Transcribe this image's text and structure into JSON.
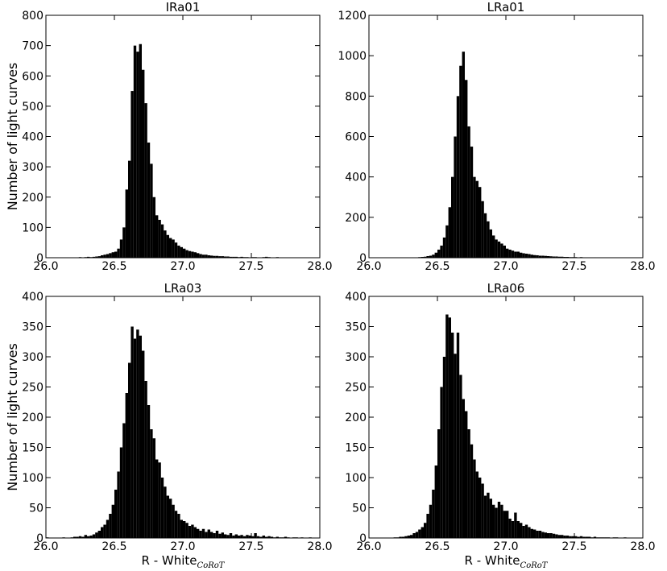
{
  "chart_data": [
    {
      "type": "histogram",
      "title": "IRa01",
      "ylabel": "Number of light curves",
      "color": "#000000",
      "bins": [
        26.0,
        26.02,
        26.04,
        26.06,
        26.08,
        26.1,
        26.12,
        26.14,
        26.16,
        26.18,
        26.2,
        26.22,
        26.24,
        26.26,
        26.28,
        26.3,
        26.32,
        26.34,
        26.36,
        26.38,
        26.4,
        26.42,
        26.44,
        26.46,
        26.48,
        26.5,
        26.52,
        26.54,
        26.56,
        26.58,
        26.6,
        26.62,
        26.64,
        26.66,
        26.68,
        26.7,
        26.72,
        26.74,
        26.76,
        26.78,
        26.8,
        26.82,
        26.84,
        26.86,
        26.88,
        26.9,
        26.92,
        26.94,
        26.96,
        26.98,
        27.0,
        27.02,
        27.04,
        27.06,
        27.08,
        27.1,
        27.12,
        27.14,
        27.16,
        27.18,
        27.2,
        27.22,
        27.24,
        27.26,
        27.28,
        27.3,
        27.32,
        27.34,
        27.36,
        27.38,
        27.4,
        27.42,
        27.44,
        27.46,
        27.48,
        27.5,
        27.52,
        27.54,
        27.56,
        27.58,
        27.6,
        27.62,
        27.64,
        27.66,
        27.68,
        27.7,
        27.72,
        27.74,
        27.76,
        27.78,
        27.8,
        27.82,
        27.84,
        27.86,
        27.88,
        27.9,
        27.92,
        27.94,
        27.96,
        27.98,
        28.0
      ],
      "values": [
        0,
        0,
        0,
        0,
        1,
        0,
        1,
        1,
        0,
        1,
        1,
        1,
        2,
        1,
        2,
        3,
        2,
        3,
        4,
        5,
        8,
        10,
        12,
        15,
        18,
        20,
        30,
        60,
        100,
        225,
        320,
        550,
        700,
        680,
        705,
        620,
        510,
        380,
        310,
        200,
        140,
        125,
        110,
        90,
        75,
        65,
        60,
        50,
        40,
        35,
        30,
        25,
        22,
        20,
        18,
        15,
        12,
        10,
        10,
        8,
        7,
        6,
        6,
        5,
        5,
        4,
        4,
        3,
        3,
        3,
        2,
        3,
        2,
        2,
        1,
        2,
        2,
        1,
        1,
        2,
        3,
        2,
        1,
        1,
        2,
        1,
        1,
        1,
        0,
        1,
        1,
        0,
        1,
        1,
        0,
        1,
        0,
        1,
        0,
        0
      ],
      "xlim": [
        26.0,
        28.0
      ],
      "ylim": [
        0,
        800
      ],
      "xticks": [
        {
          "value": 26.0,
          "label": "26.0"
        },
        {
          "value": 26.5,
          "label": "26.5"
        },
        {
          "value": 27.0,
          "label": "27.0"
        },
        {
          "value": 27.5,
          "label": "27.5"
        },
        {
          "value": 28.0,
          "label": "28.0"
        }
      ],
      "yticks": [
        0,
        100,
        200,
        300,
        400,
        500,
        600,
        700,
        800
      ]
    },
    {
      "type": "histogram",
      "title": "LRa01",
      "color": "#000000",
      "bins": [
        26.0,
        26.02,
        26.04,
        26.06,
        26.08,
        26.1,
        26.12,
        26.14,
        26.16,
        26.18,
        26.2,
        26.22,
        26.24,
        26.26,
        26.28,
        26.3,
        26.32,
        26.34,
        26.36,
        26.38,
        26.4,
        26.42,
        26.44,
        26.46,
        26.48,
        26.5,
        26.52,
        26.54,
        26.56,
        26.58,
        26.6,
        26.62,
        26.64,
        26.66,
        26.68,
        26.7,
        26.72,
        26.74,
        26.76,
        26.78,
        26.8,
        26.82,
        26.84,
        26.86,
        26.88,
        26.9,
        26.92,
        26.94,
        26.96,
        26.98,
        27.0,
        27.02,
        27.04,
        27.06,
        27.08,
        27.1,
        27.12,
        27.14,
        27.16,
        27.18,
        27.2,
        27.22,
        27.24,
        27.26,
        27.28,
        27.3,
        27.32,
        27.34,
        27.36,
        27.38,
        27.4,
        27.42,
        27.44,
        27.46,
        27.48,
        27.5,
        27.52,
        27.54,
        27.56,
        27.58,
        27.6,
        27.62,
        27.64,
        27.66,
        27.68,
        27.7,
        27.72,
        27.74,
        27.76,
        27.78,
        27.8,
        27.82,
        27.84,
        27.86,
        27.88,
        27.9,
        27.92,
        27.94,
        27.96,
        27.98,
        28.0
      ],
      "values": [
        0,
        0,
        0,
        0,
        0,
        0,
        0,
        0,
        0,
        0,
        0,
        1,
        0,
        1,
        1,
        1,
        2,
        2,
        3,
        4,
        5,
        8,
        10,
        15,
        25,
        40,
        60,
        100,
        160,
        250,
        400,
        600,
        800,
        950,
        1020,
        880,
        650,
        550,
        400,
        380,
        350,
        280,
        220,
        180,
        140,
        110,
        90,
        80,
        70,
        60,
        45,
        40,
        35,
        30,
        30,
        25,
        22,
        20,
        18,
        15,
        13,
        12,
        10,
        10,
        9,
        8,
        7,
        6,
        6,
        5,
        5,
        4,
        4,
        3,
        3,
        3,
        2,
        3,
        2,
        2,
        2,
        1,
        2,
        1,
        1,
        1,
        1,
        0,
        1,
        1,
        0,
        1,
        0,
        1,
        0,
        0,
        1,
        0,
        0,
        0
      ],
      "xlim": [
        26.0,
        28.0
      ],
      "ylim": [
        0,
        1200
      ],
      "xticks": [
        {
          "value": 26.0,
          "label": "26.0"
        },
        {
          "value": 26.5,
          "label": "26.5"
        },
        {
          "value": 27.0,
          "label": "27.0"
        },
        {
          "value": 27.5,
          "label": "27.5"
        },
        {
          "value": 28.0,
          "label": "28.0"
        }
      ],
      "yticks": [
        0,
        200,
        400,
        600,
        800,
        1000,
        1200
      ]
    },
    {
      "type": "histogram",
      "title": "LRa03",
      "ylabel": "Number of light curves",
      "xlabel": "R - White",
      "xlabel_subscript": "CoRoT",
      "color": "#000000",
      "bins": [
        26.0,
        26.02,
        26.04,
        26.06,
        26.08,
        26.1,
        26.12,
        26.14,
        26.16,
        26.18,
        26.2,
        26.22,
        26.24,
        26.26,
        26.28,
        26.3,
        26.32,
        26.34,
        26.36,
        26.38,
        26.4,
        26.42,
        26.44,
        26.46,
        26.48,
        26.5,
        26.52,
        26.54,
        26.56,
        26.58,
        26.6,
        26.62,
        26.64,
        26.66,
        26.68,
        26.7,
        26.72,
        26.74,
        26.76,
        26.78,
        26.8,
        26.82,
        26.84,
        26.86,
        26.88,
        26.9,
        26.92,
        26.94,
        26.96,
        26.98,
        27.0,
        27.02,
        27.04,
        27.06,
        27.08,
        27.1,
        27.12,
        27.14,
        27.16,
        27.18,
        27.2,
        27.22,
        27.24,
        27.26,
        27.28,
        27.3,
        27.32,
        27.34,
        27.36,
        27.38,
        27.4,
        27.42,
        27.44,
        27.46,
        27.48,
        27.5,
        27.52,
        27.54,
        27.56,
        27.58,
        27.6,
        27.62,
        27.64,
        27.66,
        27.68,
        27.7,
        27.72,
        27.74,
        27.76,
        27.78,
        27.8,
        27.82,
        27.84,
        27.86,
        27.88,
        27.9,
        27.92,
        27.94,
        27.96,
        27.98,
        28.0
      ],
      "values": [
        1,
        0,
        0,
        0,
        0,
        0,
        1,
        0,
        0,
        1,
        2,
        2,
        3,
        2,
        5,
        3,
        4,
        6,
        9,
        12,
        18,
        22,
        30,
        40,
        55,
        80,
        110,
        150,
        190,
        240,
        290,
        350,
        330,
        345,
        335,
        310,
        260,
        220,
        180,
        165,
        130,
        125,
        100,
        85,
        70,
        65,
        55,
        45,
        40,
        30,
        28,
        25,
        20,
        22,
        18,
        15,
        12,
        15,
        10,
        14,
        10,
        8,
        12,
        7,
        9,
        6,
        5,
        8,
        4,
        6,
        4,
        5,
        3,
        5,
        4,
        3,
        8,
        3,
        2,
        4,
        2,
        3,
        2,
        1,
        2,
        1,
        1,
        2,
        1,
        0,
        1,
        1,
        0,
        1,
        0,
        0,
        1,
        0,
        0,
        0
      ],
      "xlim": [
        26.0,
        28.0
      ],
      "ylim": [
        0,
        400
      ],
      "xticks": [
        {
          "value": 26.0,
          "label": "26.0"
        },
        {
          "value": 26.5,
          "label": "26.5"
        },
        {
          "value": 27.0,
          "label": "27.0"
        },
        {
          "value": 27.5,
          "label": "27.5"
        },
        {
          "value": 28.0,
          "label": "28.0"
        }
      ],
      "yticks": [
        0,
        50,
        100,
        150,
        200,
        250,
        300,
        350,
        400
      ]
    },
    {
      "type": "histogram",
      "title": "LRa06",
      "xlabel": "R - White",
      "xlabel_subscript": "CoRoT",
      "color": "#000000",
      "bins": [
        26.0,
        26.02,
        26.04,
        26.06,
        26.08,
        26.1,
        26.12,
        26.14,
        26.16,
        26.18,
        26.2,
        26.22,
        26.24,
        26.26,
        26.28,
        26.3,
        26.32,
        26.34,
        26.36,
        26.38,
        26.4,
        26.42,
        26.44,
        26.46,
        26.48,
        26.5,
        26.52,
        26.54,
        26.56,
        26.58,
        26.6,
        26.62,
        26.64,
        26.66,
        26.68,
        26.7,
        26.72,
        26.74,
        26.76,
        26.78,
        26.8,
        26.82,
        26.84,
        26.86,
        26.88,
        26.9,
        26.92,
        26.94,
        26.96,
        26.98,
        27.0,
        27.02,
        27.04,
        27.06,
        27.08,
        27.1,
        27.12,
        27.14,
        27.16,
        27.18,
        27.2,
        27.22,
        27.24,
        27.26,
        27.28,
        27.3,
        27.32,
        27.34,
        27.36,
        27.38,
        27.4,
        27.42,
        27.44,
        27.46,
        27.48,
        27.5,
        27.52,
        27.54,
        27.56,
        27.58,
        27.6,
        27.62,
        27.64,
        27.66,
        27.68,
        27.7,
        27.72,
        27.74,
        27.76,
        27.78,
        27.8,
        27.82,
        27.84,
        27.86,
        27.88,
        27.9,
        27.92,
        27.94,
        27.96,
        27.98,
        28.0
      ],
      "values": [
        0,
        0,
        0,
        0,
        0,
        0,
        0,
        0,
        0,
        1,
        1,
        2,
        2,
        3,
        4,
        5,
        8,
        10,
        14,
        18,
        25,
        40,
        55,
        80,
        120,
        180,
        250,
        300,
        370,
        365,
        340,
        305,
        340,
        270,
        230,
        210,
        180,
        155,
        130,
        110,
        100,
        90,
        70,
        75,
        65,
        55,
        50,
        60,
        55,
        45,
        45,
        32,
        28,
        42,
        28,
        25,
        20,
        22,
        18,
        15,
        14,
        12,
        12,
        10,
        9,
        8,
        8,
        7,
        6,
        5,
        5,
        4,
        4,
        3,
        3,
        3,
        2,
        3,
        2,
        2,
        2,
        1,
        2,
        1,
        1,
        1,
        1,
        1,
        0,
        1,
        1,
        0,
        0,
        1,
        0,
        0,
        0,
        0,
        0,
        0
      ],
      "xlim": [
        26.0,
        28.0
      ],
      "ylim": [
        0,
        400
      ],
      "xticks": [
        {
          "value": 26.0,
          "label": "26.0"
        },
        {
          "value": 26.5,
          "label": "26.5"
        },
        {
          "value": 27.0,
          "label": "27.0"
        },
        {
          "value": 27.5,
          "label": "27.5"
        },
        {
          "value": 28.0,
          "label": "28.0"
        }
      ],
      "yticks": [
        0,
        50,
        100,
        150,
        200,
        250,
        300,
        350,
        400
      ]
    }
  ]
}
